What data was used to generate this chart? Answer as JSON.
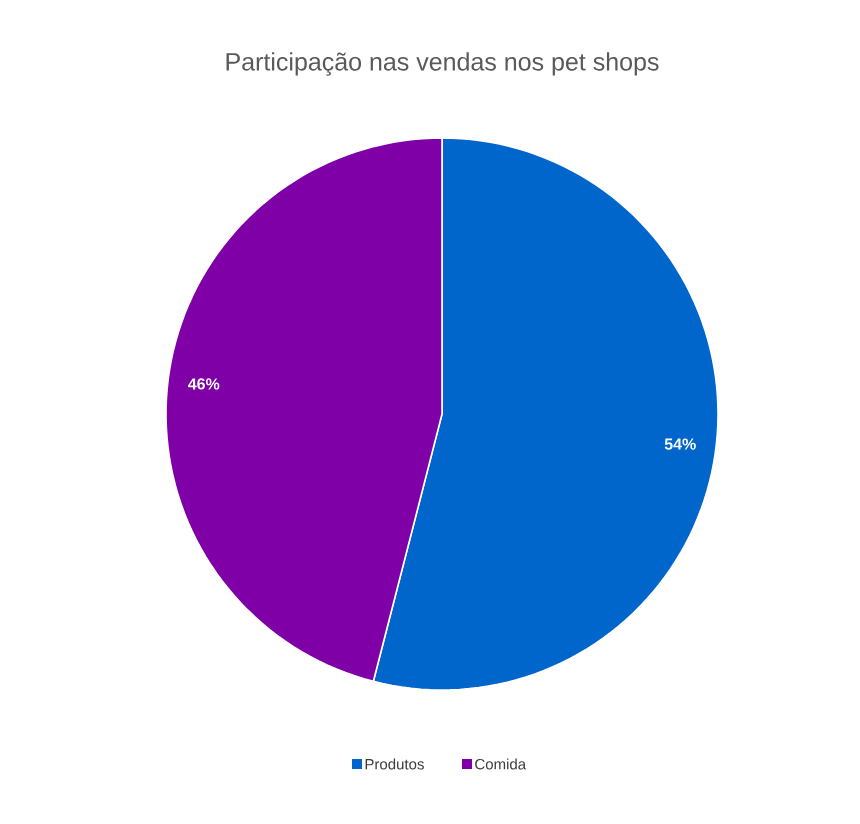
{
  "chart_data": {
    "type": "pie",
    "title": "Participação nas vendas nos pet shops",
    "categories": [
      "Produtos",
      "Comida"
    ],
    "values": [
      54,
      46
    ],
    "value_labels": [
      "54%",
      "46%"
    ],
    "colors": [
      "#0066cc",
      "#7f00a6"
    ],
    "legend": "bottom"
  }
}
